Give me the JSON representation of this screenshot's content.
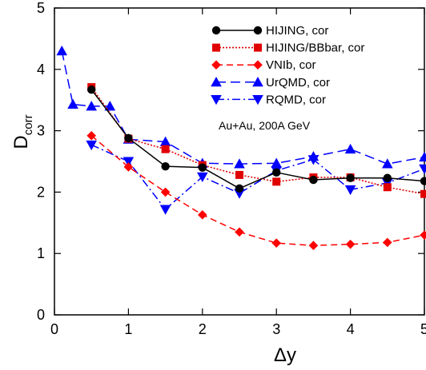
{
  "chart_data": {
    "type": "line",
    "xlabel": "Δy",
    "ylabel_main": "D",
    "ylabel_sub": "corr",
    "xlim": [
      0,
      5
    ],
    "ylim": [
      0,
      5
    ],
    "xticks": [
      "0",
      "1",
      "2",
      "3",
      "4",
      "5"
    ],
    "yticks": [
      "0",
      "1",
      "2",
      "3",
      "4",
      "5"
    ],
    "annotation": "Au+Au, 200A GeV",
    "legend_position": "top-right",
    "series": [
      {
        "name": "HIJING, cor",
        "color": "#000000",
        "line_style": "solid",
        "marker": "circle",
        "x": [
          0.5,
          1.0,
          1.5,
          2.0,
          2.5,
          3.0,
          3.5,
          4.0,
          4.5,
          5.0
        ],
        "y": [
          3.67,
          2.88,
          2.42,
          2.4,
          2.06,
          2.32,
          2.2,
          2.23,
          2.23,
          2.18
        ]
      },
      {
        "name": "HIJING/BBbar, cor",
        "color": "#e00000",
        "line_style": "dotted",
        "marker": "square",
        "x": [
          0.5,
          1.0,
          1.5,
          2.0,
          2.5,
          3.0,
          3.5,
          4.0,
          4.5,
          5.0
        ],
        "y": [
          3.71,
          2.87,
          2.7,
          2.44,
          2.28,
          2.17,
          2.24,
          2.24,
          2.08,
          1.97
        ]
      },
      {
        "name": "VNIb, cor",
        "color": "#ff0000",
        "line_style": "dashed",
        "marker": "diamond",
        "x": [
          0.5,
          1.0,
          1.5,
          2.0,
          2.5,
          3.0,
          3.5,
          4.0,
          4.5,
          5.0
        ],
        "y": [
          2.92,
          2.41,
          2.0,
          1.63,
          1.35,
          1.17,
          1.13,
          1.15,
          1.18,
          1.3
        ]
      },
      {
        "name": "UrQMD, cor",
        "color": "#0000ff",
        "line_style": "long-dash",
        "marker": "triangle-up",
        "x": [
          0.1,
          0.25,
          0.5,
          0.75,
          1.0,
          1.5,
          2.0,
          2.5,
          3.0,
          3.5,
          4.0,
          4.5,
          5.0
        ],
        "y": [
          4.3,
          3.43,
          3.4,
          3.4,
          2.86,
          2.82,
          2.47,
          2.46,
          2.47,
          2.58,
          2.7,
          2.46,
          2.57
        ]
      },
      {
        "name": "RQMD, cor",
        "color": "#0000ff",
        "line_style": "dash-dot",
        "marker": "triangle-down",
        "x": [
          0.5,
          1.0,
          1.5,
          2.0,
          2.5,
          3.0,
          3.5,
          4.0,
          4.5,
          5.0
        ],
        "y": [
          2.77,
          2.5,
          1.72,
          2.25,
          1.98,
          2.35,
          2.53,
          2.04,
          2.15,
          2.38
        ]
      }
    ]
  }
}
